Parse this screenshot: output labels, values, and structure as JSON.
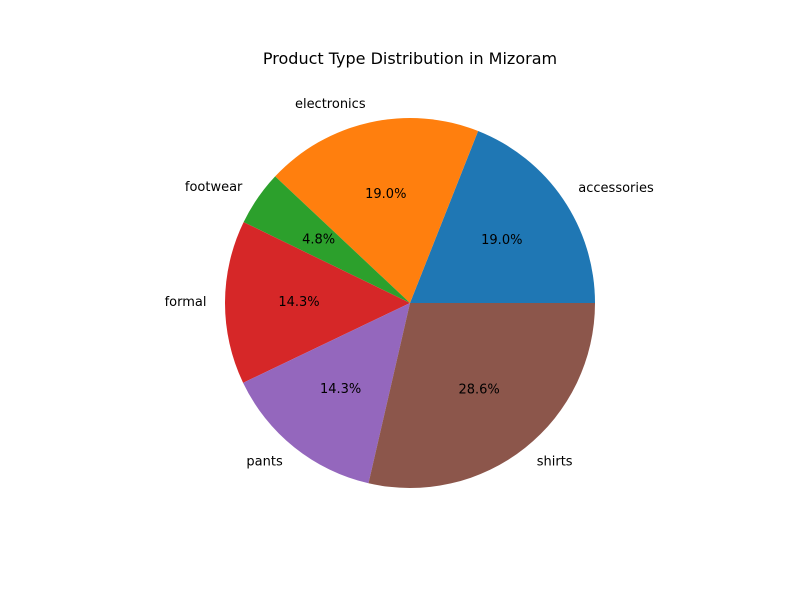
{
  "chart_data": {
    "type": "pie",
    "title": "Product Type Distribution in Mizoram",
    "categories": [
      "accessories",
      "electronics",
      "footwear",
      "formal",
      "pants",
      "shirts"
    ],
    "values": [
      19.0,
      19.0,
      4.8,
      14.3,
      14.3,
      28.6
    ],
    "value_labels": [
      "19.0%",
      "19.0%",
      "4.8%",
      "14.3%",
      "14.3%",
      "28.6%"
    ],
    "colors": [
      "#1f77b4",
      "#ff7f0e",
      "#2ca02c",
      "#d62728",
      "#9467bd",
      "#8c564b"
    ],
    "start_angle_deg": 0,
    "direction": "counterclockwise",
    "legend": "none"
  }
}
